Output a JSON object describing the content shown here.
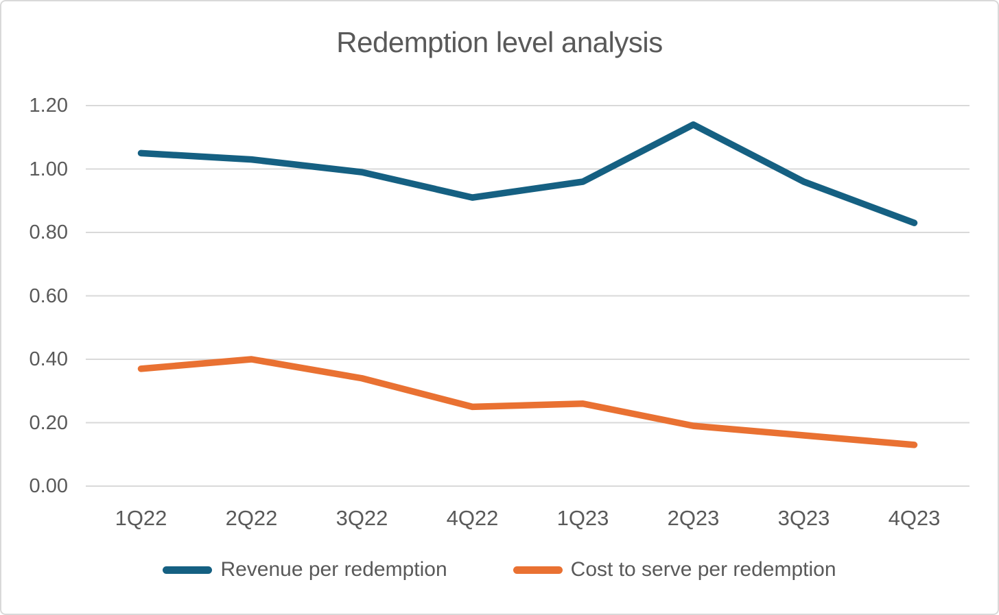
{
  "chart_data": {
    "type": "line",
    "title": "Redemption level analysis",
    "categories": [
      "1Q22",
      "2Q22",
      "3Q22",
      "4Q22",
      "1Q23",
      "2Q23",
      "3Q23",
      "4Q23"
    ],
    "series": [
      {
        "name": "Revenue per redemption",
        "color": "#156082",
        "values": [
          1.05,
          1.03,
          0.99,
          0.91,
          0.96,
          1.14,
          0.96,
          0.83
        ]
      },
      {
        "name": "Cost to serve per redemption",
        "color": "#E97132",
        "values": [
          0.37,
          0.4,
          0.34,
          0.25,
          0.26,
          0.19,
          0.16,
          0.13
        ]
      }
    ],
    "xlabel": "",
    "ylabel": "",
    "ylim": [
      0.0,
      1.2
    ],
    "y_ticks": [
      0.0,
      0.2,
      0.4,
      0.6,
      0.8,
      1.0,
      1.2
    ],
    "y_tick_labels": [
      "0.00",
      "0.20",
      "0.40",
      "0.60",
      "0.80",
      "1.00",
      "1.20"
    ],
    "grid": "horizontal",
    "legend_position": "bottom",
    "colors": {
      "grid": "#D9D9D9",
      "border": "#D9D9D9",
      "text": "#595959",
      "background": "#FFFFFF"
    }
  }
}
